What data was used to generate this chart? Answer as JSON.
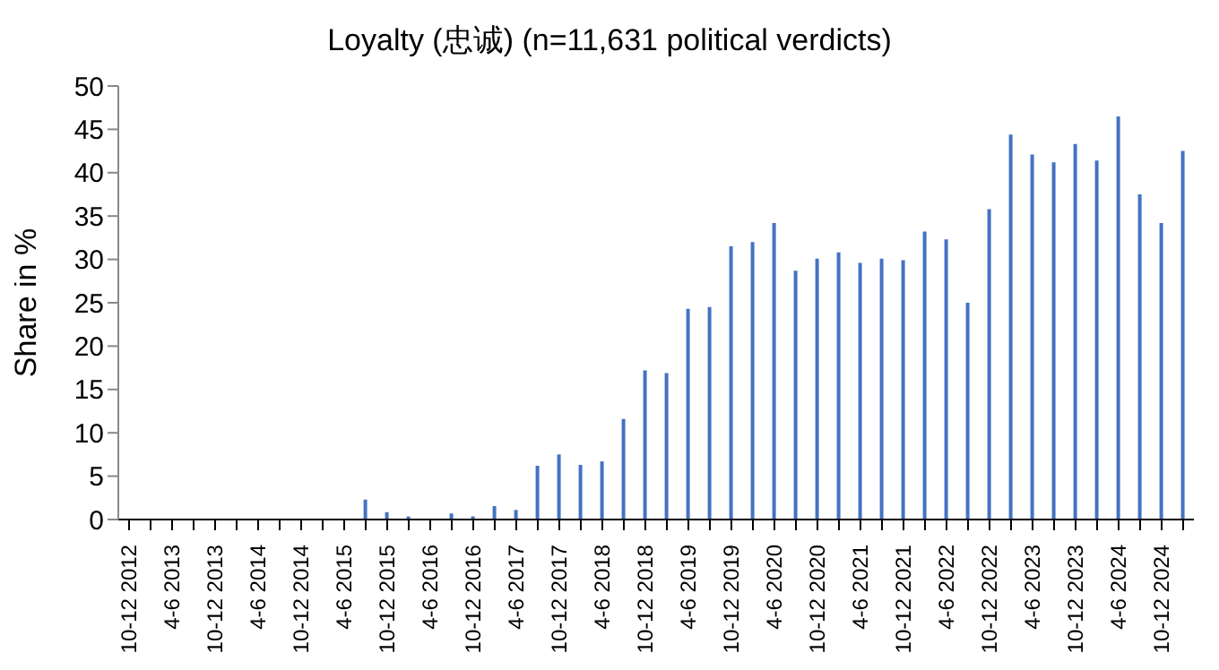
{
  "chart_data": {
    "type": "bar",
    "title": "Loyalty (忠诚) (n=11,631 political verdicts)",
    "ylabel": "Share in %",
    "categories": [
      "10-12 2012",
      null,
      "4-6 2013",
      null,
      "10-12 2013",
      null,
      "4-6 2014",
      null,
      "10-12 2014",
      null,
      "4-6 2015",
      null,
      "10-12 2015",
      null,
      "4-6 2016",
      null,
      "10-12 2016",
      null,
      "4-6 2017",
      null,
      "10-12 2017",
      null,
      "4-6 2018",
      null,
      "10-12 2018",
      null,
      "4-6 2019",
      null,
      "10-12 2019",
      null,
      "4-6 2020",
      null,
      "10-12 2020",
      null,
      "4-6 2021",
      null,
      "10-12 2021",
      null,
      "4-6 2022",
      null,
      "10-12 2022",
      null,
      "4-6 2023",
      null,
      "10-12 2023",
      null,
      "4-6 2024",
      null,
      "10-12 2024",
      null
    ],
    "values": [
      0,
      0,
      0,
      0,
      0,
      0,
      0,
      0,
      0,
      0,
      0,
      2.3,
      0.85,
      0.35,
      0,
      0.7,
      0.35,
      1.55,
      1.1,
      6.2,
      7.5,
      6.3,
      6.7,
      11.6,
      17.2,
      16.9,
      24.3,
      24.5,
      31.5,
      32.0,
      34.2,
      28.7,
      30.1,
      30.8,
      29.6,
      30.1,
      29.9,
      33.2,
      32.3,
      25.0,
      35.8,
      44.4,
      42.1,
      41.2,
      43.3,
      41.4,
      46.5,
      37.5,
      34.2,
      42.5
    ],
    "color": "#4472c4",
    "ylim": [
      0,
      50
    ],
    "yticks": [
      0,
      5,
      10,
      15,
      20,
      25,
      30,
      35,
      40,
      45,
      50
    ],
    "grid": false,
    "legend": false
  }
}
